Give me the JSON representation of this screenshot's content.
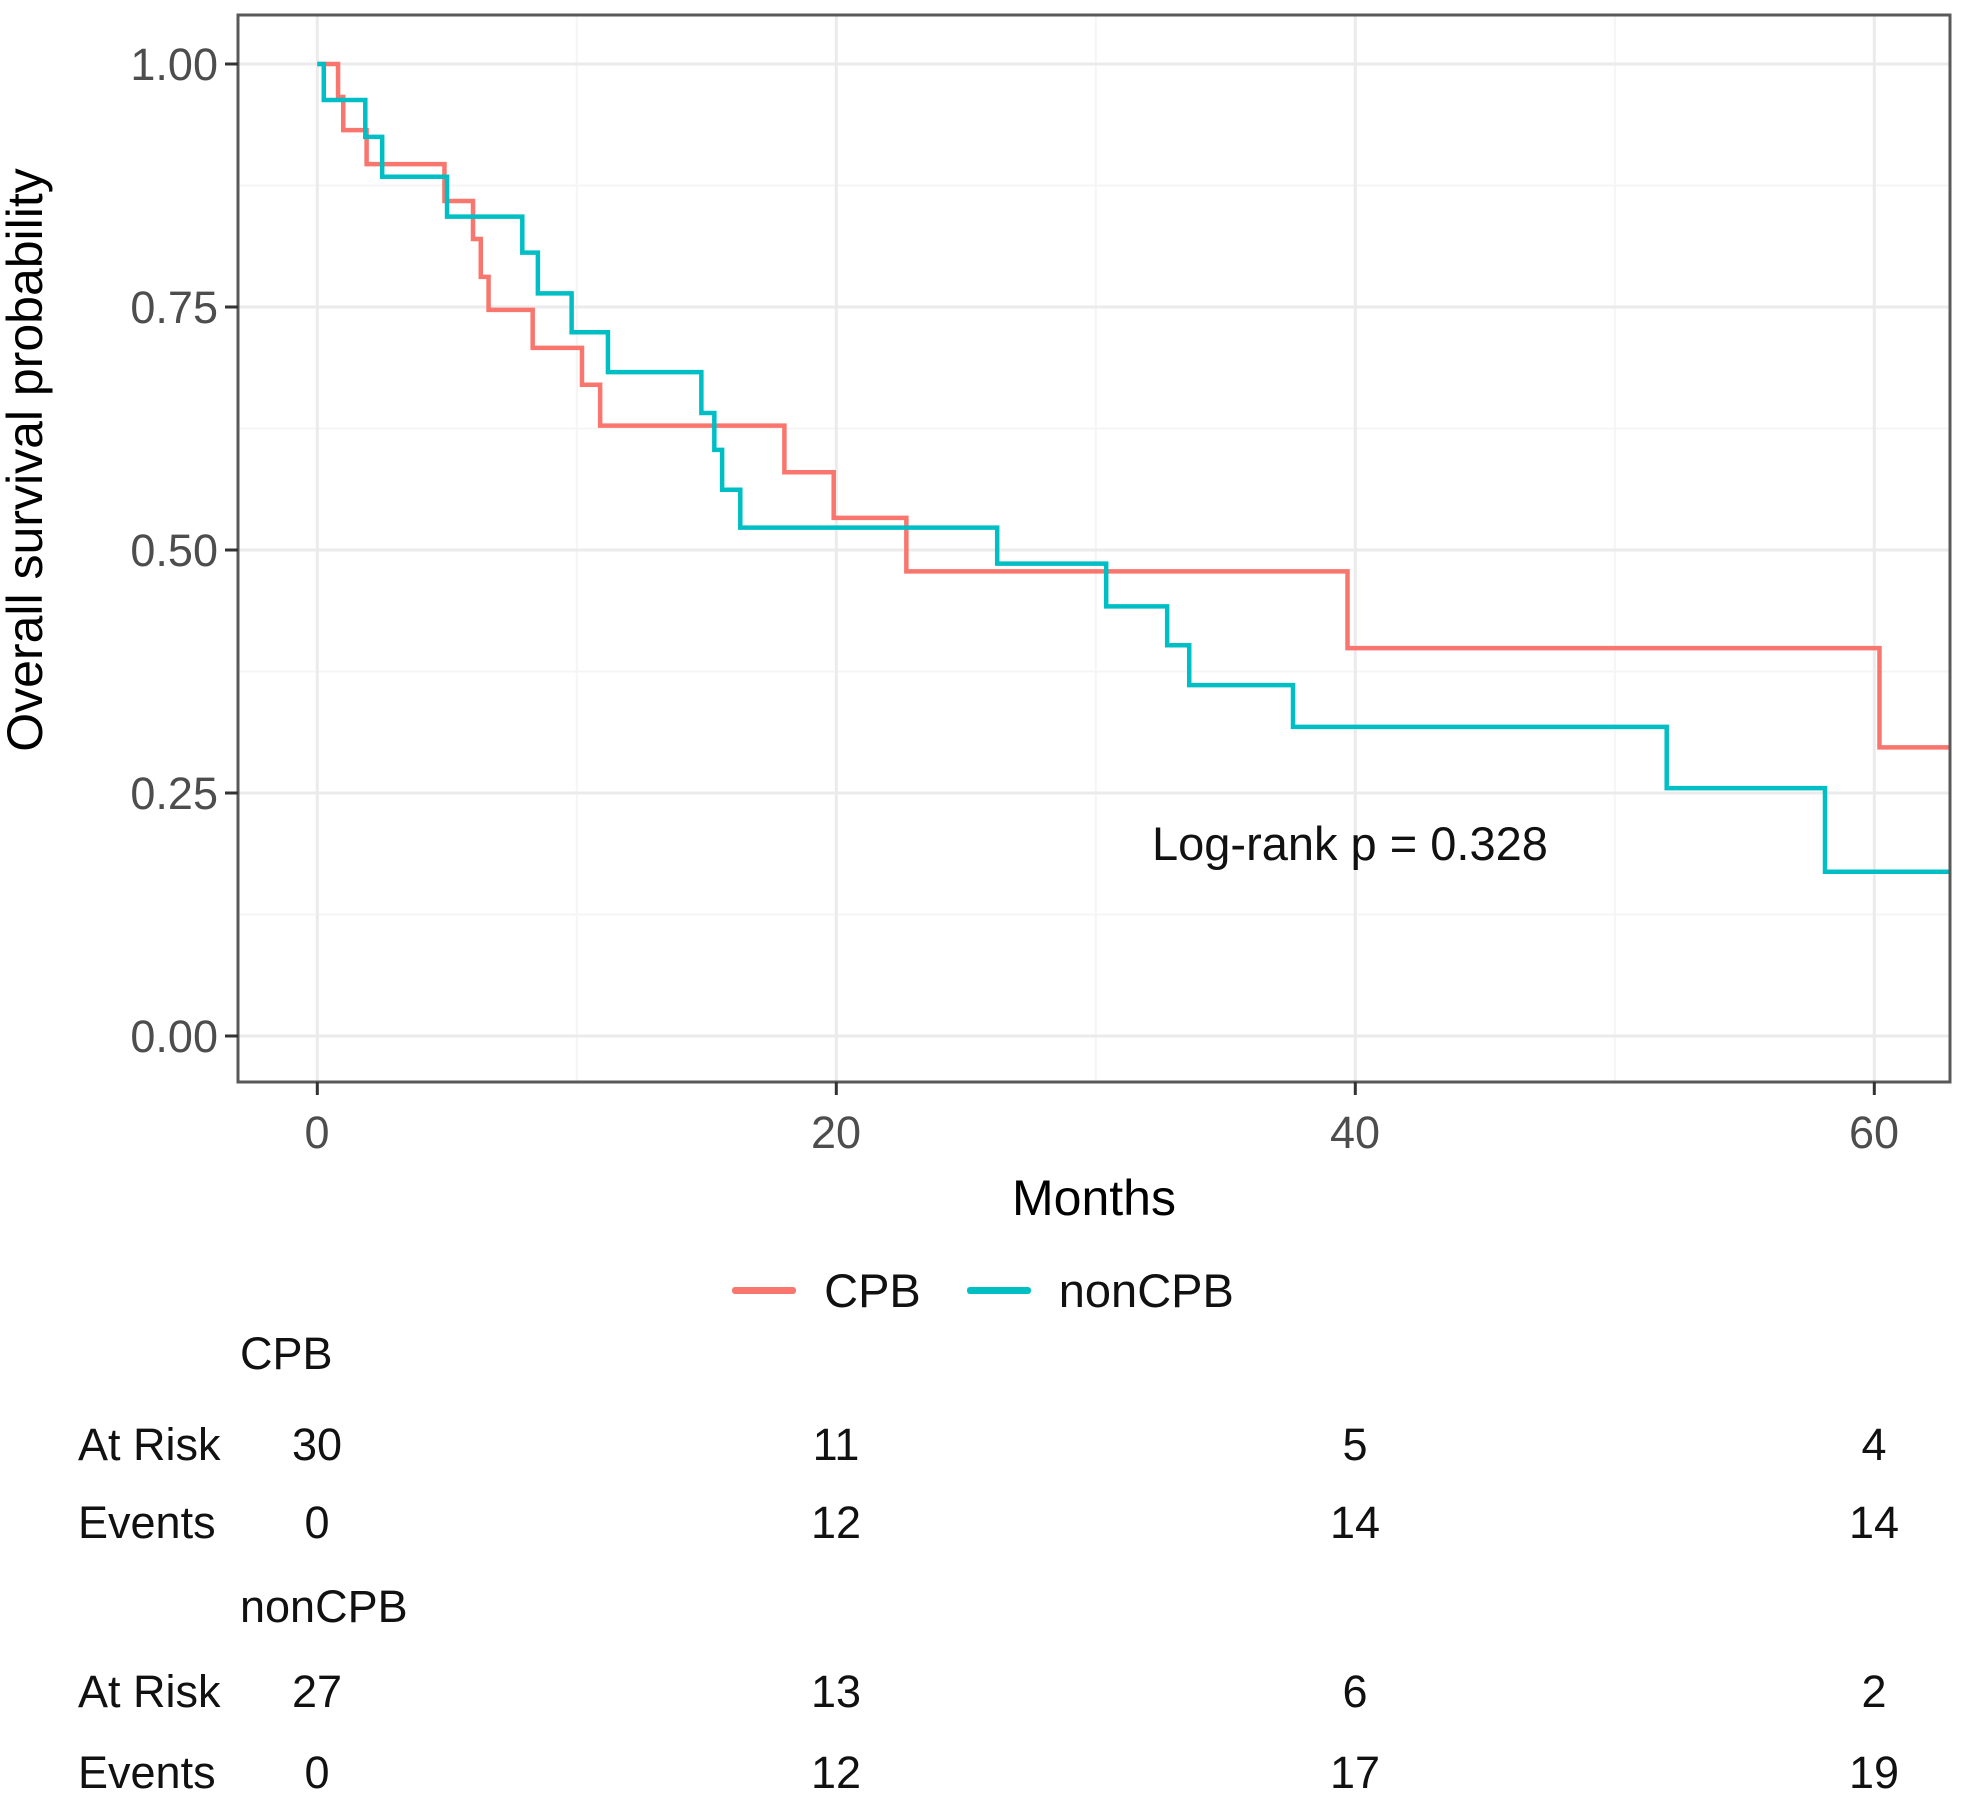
{
  "colors": {
    "cpb": "#F8766D",
    "noncpb": "#00BFC4",
    "grid_major": "#EBEBEB",
    "grid_minor": "#F5F5F5",
    "panel_border": "#595959",
    "tick_mark": "#333333",
    "tick_label": "#4d4d4d",
    "text": "#111111"
  },
  "chart_data": {
    "type": "line",
    "variant": "kaplan-meier-step",
    "title": "",
    "xlabel": "Months",
    "ylabel": "Overall survival probability",
    "xlim": [
      -3.05,
      62.9
    ],
    "ylim": [
      -0.047,
      1.05
    ],
    "grid": true,
    "legend_position": "bottom",
    "x_ticks": [
      {
        "value": 0,
        "label": "0"
      },
      {
        "value": 20,
        "label": "20"
      },
      {
        "value": 40,
        "label": "40"
      },
      {
        "value": 60,
        "label": "60"
      }
    ],
    "x_minor_ticks": [
      10,
      30,
      50
    ],
    "y_ticks": [
      {
        "value": 1.0,
        "label": "1.00"
      },
      {
        "value": 0.75,
        "label": "0.75"
      },
      {
        "value": 0.5,
        "label": "0.50"
      },
      {
        "value": 0.25,
        "label": "0.25"
      },
      {
        "value": 0.0,
        "label": "0.00"
      }
    ],
    "y_minor_ticks": [
      0.875,
      0.625,
      0.375,
      0.125
    ],
    "annotation": {
      "text": "Log-rank p = 0.328",
      "x_month": 32.2,
      "y_prob": 0.19
    },
    "series": [
      {
        "name": "CPB",
        "color": "#F8766D",
        "n_start": 30,
        "steps": [
          [
            0,
            1.0
          ],
          [
            0.8,
            0.966
          ],
          [
            1.0,
            0.932
          ],
          [
            1.9,
            0.897
          ],
          [
            4.9,
            0.859
          ],
          [
            6.0,
            0.82
          ],
          [
            6.3,
            0.781
          ],
          [
            6.6,
            0.747
          ],
          [
            8.3,
            0.708
          ],
          [
            10.2,
            0.67
          ],
          [
            10.9,
            0.628
          ],
          [
            18.0,
            0.58
          ],
          [
            19.9,
            0.533
          ],
          [
            22.7,
            0.478
          ],
          [
            39.7,
            0.399
          ],
          [
            60.2,
            0.297
          ]
        ],
        "end_month": 62.9
      },
      {
        "name": "nonCPB",
        "color": "#00BFC4",
        "n_start": 27,
        "steps": [
          [
            0,
            1.0
          ],
          [
            0.25,
            0.963
          ],
          [
            1.85,
            0.925
          ],
          [
            2.5,
            0.884
          ],
          [
            5.0,
            0.843
          ],
          [
            7.9,
            0.806
          ],
          [
            8.5,
            0.764
          ],
          [
            9.8,
            0.724
          ],
          [
            11.2,
            0.683
          ],
          [
            14.8,
            0.641
          ],
          [
            15.3,
            0.603
          ],
          [
            15.6,
            0.562
          ],
          [
            16.3,
            0.523
          ],
          [
            26.2,
            0.486
          ],
          [
            30.4,
            0.442
          ],
          [
            32.75,
            0.402
          ],
          [
            33.6,
            0.361
          ],
          [
            37.6,
            0.318
          ],
          [
            52.0,
            0.255
          ],
          [
            58.1,
            0.169
          ]
        ],
        "end_month": 62.9
      }
    ]
  },
  "legend": {
    "items": [
      {
        "label": "CPB",
        "color": "#F8766D"
      },
      {
        "label": "nonCPB",
        "color": "#00BFC4"
      }
    ]
  },
  "risk_table": {
    "rows": [
      {
        "kind": "group",
        "label": "CPB"
      },
      {
        "kind": "data",
        "label": "At Risk",
        "values": [
          "30",
          "11",
          "5",
          "4"
        ]
      },
      {
        "kind": "data",
        "label": "Events",
        "values": [
          "0",
          "12",
          "14",
          "14"
        ]
      },
      {
        "kind": "group",
        "label": "nonCPB"
      },
      {
        "kind": "data",
        "label": "At Risk",
        "values": [
          "27",
          "13",
          "6",
          "2"
        ]
      },
      {
        "kind": "data",
        "label": "Events",
        "values": [
          "0",
          "12",
          "17",
          "19"
        ]
      }
    ]
  }
}
